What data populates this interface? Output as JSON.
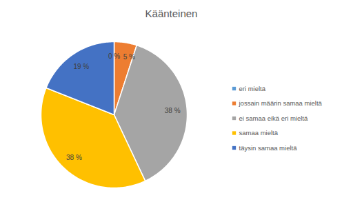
{
  "chart_data": {
    "type": "pie",
    "title": "Käänteinen",
    "categories": [
      "eri mieltä",
      "jossain määrin samaa mieltä",
      "ei samaa eikä eri mieltä",
      "samaa mieltä",
      "täysin samaa mieltä"
    ],
    "values": [
      0,
      5,
      38,
      38,
      19
    ],
    "value_labels": [
      "0 %",
      "5 %",
      "38 %",
      "38 %",
      "19 %"
    ],
    "colors": [
      "#5b9bd5",
      "#ed7d31",
      "#a5a5a5",
      "#ffc000",
      "#4472c4"
    ],
    "data_labels": true,
    "legend": "right"
  }
}
